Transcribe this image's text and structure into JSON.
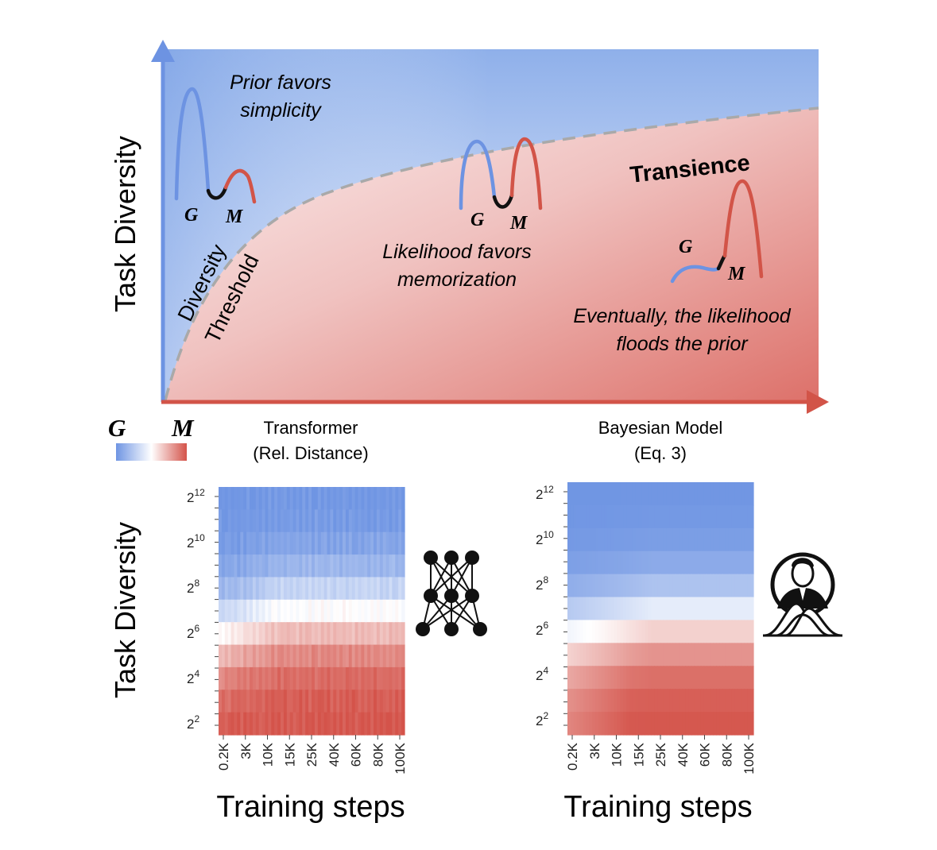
{
  "top": {
    "y_axis_label": "Task Diversity",
    "prior_label": [
      "Prior favors",
      "simplicity"
    ],
    "likelihood_label": [
      "Likelihood favors",
      "memorization"
    ],
    "transience_label": "Transience",
    "eventually_label": [
      "Eventually, the likelihood",
      "floods the prior"
    ],
    "threshold_label": [
      "Diversity",
      "Threshold"
    ],
    "g": "G",
    "m": "M",
    "colors": {
      "general": "#6d93e2",
      "memorize": "#d25448",
      "threshold": "#a9a9a9"
    }
  },
  "legend": {
    "g": "G",
    "m": "M"
  },
  "panels": [
    {
      "title": [
        "Transformer",
        "(Rel. Distance)"
      ],
      "y_axis_label": "Task Diversity",
      "x_axis_label": "Training steps",
      "y_ticks": [
        {
          "base": "2",
          "exp": "12"
        },
        {
          "base": "2",
          "exp": "10"
        },
        {
          "base": "2",
          "exp": "8"
        },
        {
          "base": "2",
          "exp": "6"
        },
        {
          "base": "2",
          "exp": "4"
        },
        {
          "base": "2",
          "exp": "2"
        }
      ],
      "x_ticks": [
        "0.2K",
        "3K",
        "10K",
        "15K",
        "25K",
        "40K",
        "60K",
        "80K",
        "100K"
      ],
      "icon": "neural-network-icon"
    },
    {
      "title": [
        "Bayesian Model",
        "(Eq. 3)"
      ],
      "y_axis_label": "",
      "x_axis_label": "Training steps",
      "y_ticks": [
        {
          "base": "2",
          "exp": "12"
        },
        {
          "base": "2",
          "exp": "10"
        },
        {
          "base": "2",
          "exp": "8"
        },
        {
          "base": "2",
          "exp": "6"
        },
        {
          "base": "2",
          "exp": "4"
        },
        {
          "base": "2",
          "exp": "2"
        }
      ],
      "x_ticks": [
        "0.2K",
        "3K",
        "10K",
        "15K",
        "25K",
        "40K",
        "60K",
        "80K",
        "100K"
      ],
      "icon": "bayes-portrait-icon"
    }
  ]
}
